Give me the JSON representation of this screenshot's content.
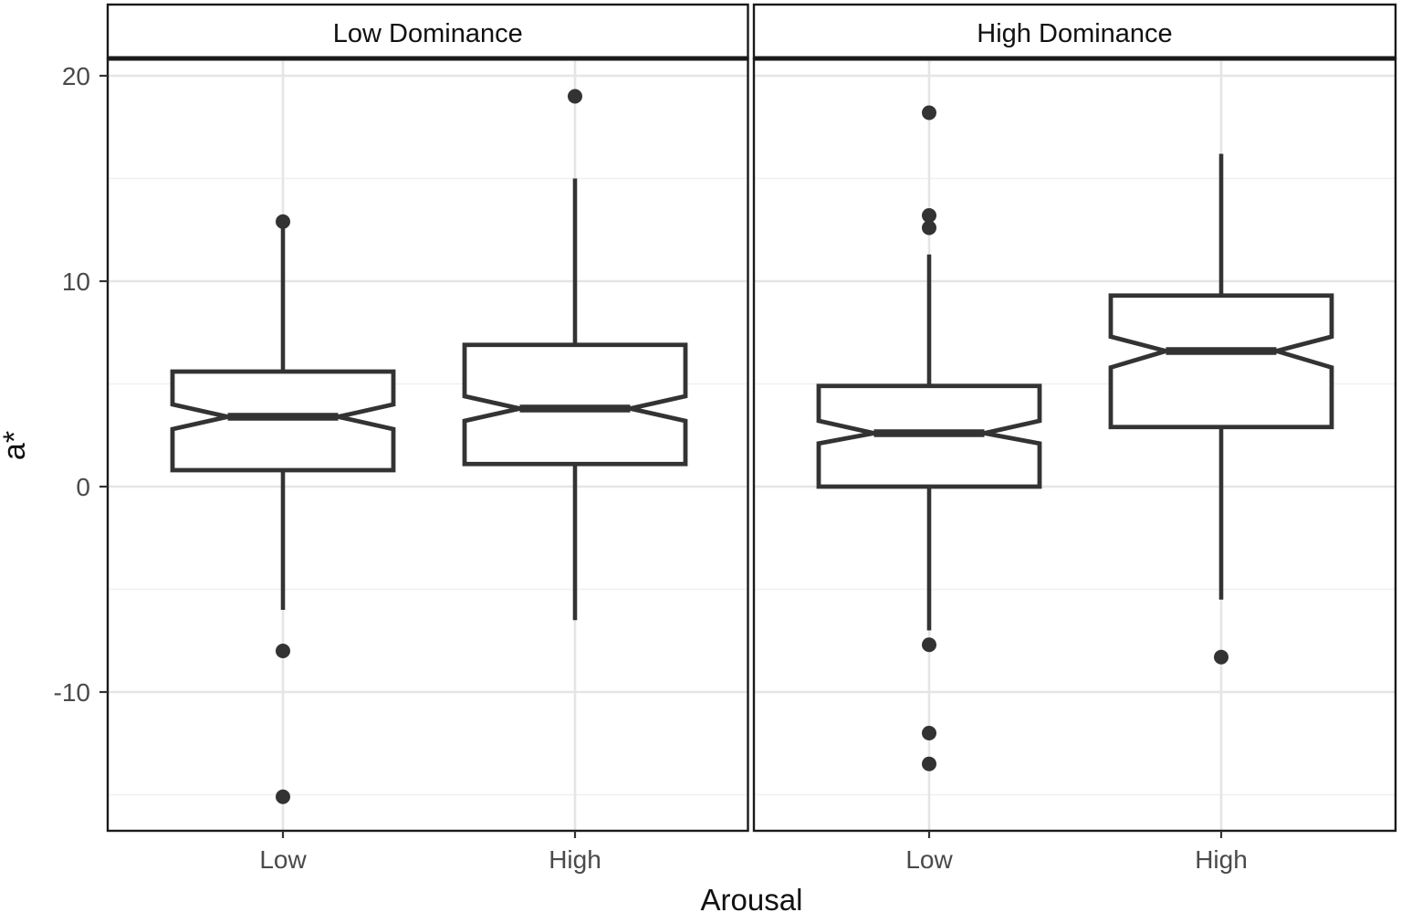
{
  "colors": {
    "background": "#ffffff",
    "panel_border": "#1a1a1a",
    "strip_background": "#ffffff",
    "box_stroke": "#333333",
    "outlier_fill": "#333333",
    "grid_major": "#e5e5e5",
    "grid_minor": "#f0f0f0",
    "tick_label": "#4a4a4a",
    "axis_title": "#111111"
  },
  "chart_data": {
    "type": "boxplot",
    "style": "notched, faceted (ggplot2-like), white theme",
    "xlabel": "Arousal",
    "ylabel": "a*",
    "x_categories": [
      "Low",
      "High"
    ],
    "y_ticks": [
      20,
      10,
      0,
      -10
    ],
    "y_minor_gridlines": [
      15,
      5,
      -5,
      -15
    ],
    "ylim": [
      -16.8,
      20.9
    ],
    "legend": "none",
    "facets": [
      {
        "label": "Low Dominance",
        "groups": [
          {
            "category": "Low",
            "q1": 0.8,
            "median": 3.4,
            "q3": 5.6,
            "notch_low": 2.8,
            "notch_high": 4.0,
            "whisker_low": -6.0,
            "whisker_high": 12.8,
            "outliers": [
              12.9,
              -8.0,
              -15.1
            ]
          },
          {
            "category": "High",
            "q1": 1.1,
            "median": 3.8,
            "q3": 6.9,
            "notch_low": 3.2,
            "notch_high": 4.4,
            "whisker_low": -6.5,
            "whisker_high": 15.0,
            "outliers": [
              19.0
            ]
          }
        ]
      },
      {
        "label": "High Dominance",
        "groups": [
          {
            "category": "Low",
            "q1": 0.0,
            "median": 2.6,
            "q3": 4.9,
            "notch_low": 2.1,
            "notch_high": 3.2,
            "whisker_low": -7.0,
            "whisker_high": 11.3,
            "outliers": [
              18.2,
              13.2,
              12.6,
              -7.7,
              -12.0,
              -13.5
            ]
          },
          {
            "category": "High",
            "q1": 2.9,
            "median": 6.6,
            "q3": 9.3,
            "notch_low": 5.8,
            "notch_high": 7.3,
            "whisker_low": -5.5,
            "whisker_high": 16.2,
            "outliers": [
              -8.3
            ]
          }
        ]
      }
    ]
  }
}
